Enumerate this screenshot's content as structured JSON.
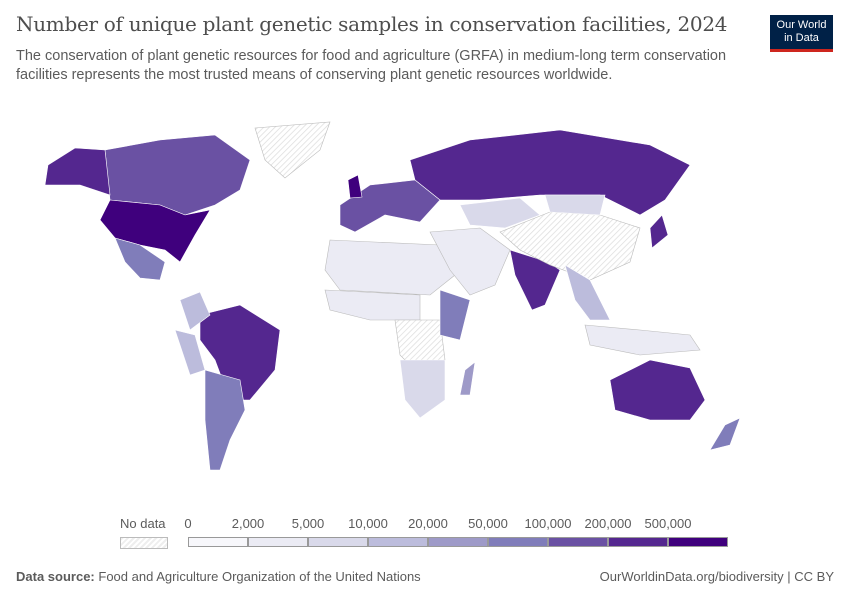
{
  "header": {
    "title": "Number of unique plant genetic samples in conservation facilities, 2024",
    "subtitle": "The conservation of plant genetic resources for food and agriculture (GRFA) in medium-long term conservation facilities represents the most trusted means of conserving plant genetic resources worldwide.",
    "logo_line1": "Our World",
    "logo_line2": "in Data"
  },
  "legend": {
    "no_data_label": "No data",
    "ticks": [
      "0",
      "2,000",
      "5,000",
      "10,000",
      "20,000",
      "50,000",
      "100,000",
      "200,000",
      "500,000"
    ],
    "colors": [
      "#f7f7fb",
      "#ebebf4",
      "#d9d9ea",
      "#bcbcdc",
      "#9e9ac8",
      "#807dba",
      "#6a51a3",
      "#54278f",
      "#3f007d"
    ]
  },
  "map": {
    "countries": [
      {
        "name": "Canada",
        "bin": 6
      },
      {
        "name": "Alaska",
        "bin": 7
      },
      {
        "name": "United States",
        "bin": 8
      },
      {
        "name": "Mexico",
        "bin": 5
      },
      {
        "name": "Greenland",
        "bin": -1
      },
      {
        "name": "Brazil",
        "bin": 7
      },
      {
        "name": "Argentina",
        "bin": 5
      },
      {
        "name": "Peru",
        "bin": 3
      },
      {
        "name": "Colombia",
        "bin": 3
      },
      {
        "name": "Russia",
        "bin": 7
      },
      {
        "name": "Western Europe",
        "bin": 6
      },
      {
        "name": "United Kingdom",
        "bin": 8
      },
      {
        "name": "India",
        "bin": 7
      },
      {
        "name": "China",
        "bin": -1
      },
      {
        "name": "Kazakhstan",
        "bin": 2
      },
      {
        "name": "Mongolia",
        "bin": 2
      },
      {
        "name": "Japan",
        "bin": 7
      },
      {
        "name": "Australia",
        "bin": 7
      },
      {
        "name": "New Zealand",
        "bin": 5
      },
      {
        "name": "North Africa",
        "bin": 1
      },
      {
        "name": "West Africa",
        "bin": 1
      },
      {
        "name": "Central Africa",
        "bin": -1
      },
      {
        "name": "Ethiopia",
        "bin": 5
      },
      {
        "name": "Southern Africa",
        "bin": 2
      },
      {
        "name": "Middle East",
        "bin": 1
      },
      {
        "name": "Southeast Asia",
        "bin": 3
      },
      {
        "name": "Madagascar",
        "bin": 4
      },
      {
        "name": "Indonesia",
        "bin": 1
      }
    ]
  },
  "footer": {
    "source_label": "Data source:",
    "source": "Food and Agriculture Organization of the United Nations",
    "link": "OurWorldinData.org/biodiversity | CC BY"
  }
}
